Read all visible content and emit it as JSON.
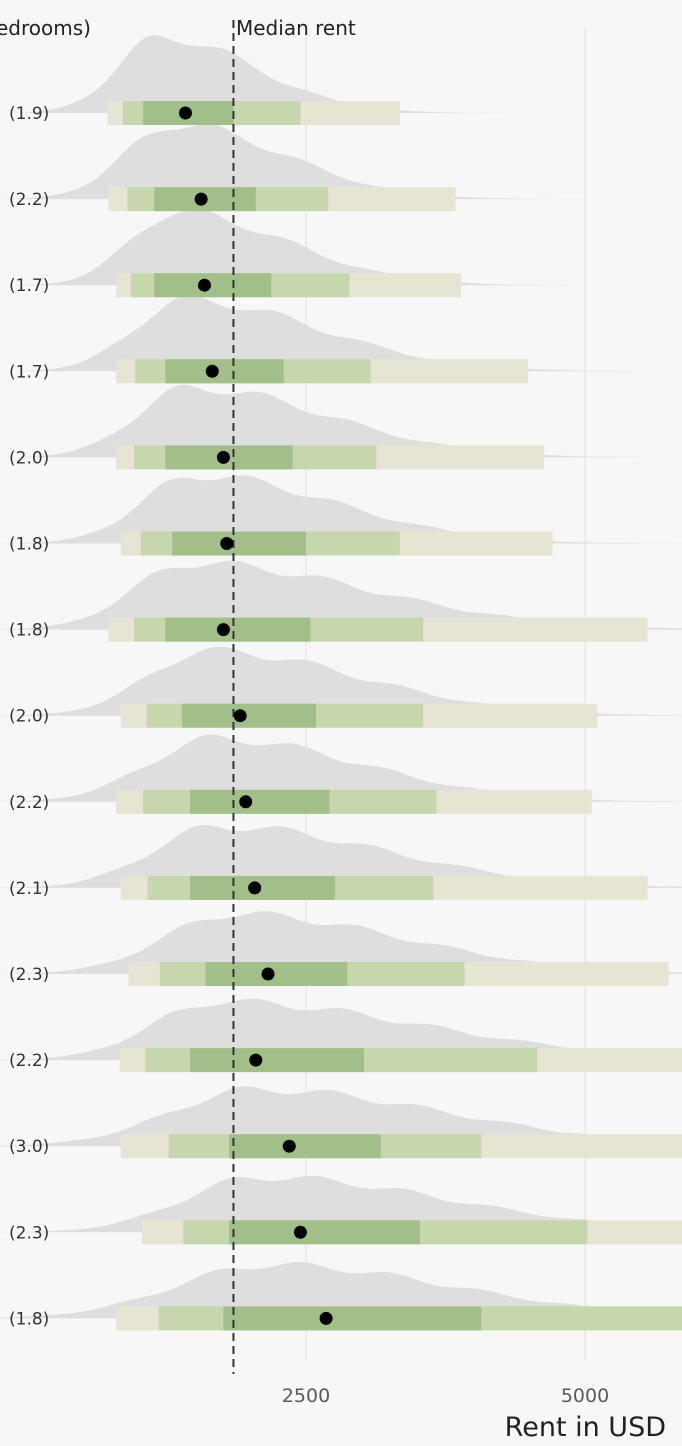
{
  "chart_data": {
    "type": "interval-density",
    "header_text": "edrooms)",
    "median_label": "Median rent",
    "median_value": 1850,
    "xlabel": "Rent in USD",
    "x_ticks": [
      2500,
      5000
    ],
    "xlim": [
      -700,
      6400
    ],
    "rows": [
      {
        "label": "(1.9)",
        "mean": 1420,
        "q50": [
          1040,
          1850
        ],
        "q80": [
          860,
          2450
        ],
        "q95": [
          720,
          3340
        ]
      },
      {
        "label": "(2.2)",
        "mean": 1560,
        "q50": [
          1140,
          2050
        ],
        "q80": [
          900,
          2700
        ],
        "q95": [
          730,
          3840
        ]
      },
      {
        "label": "(1.7)",
        "mean": 1590,
        "q50": [
          1140,
          2190
        ],
        "q80": [
          930,
          2890
        ],
        "q95": [
          800,
          3890
        ]
      },
      {
        "label": "(1.7)",
        "mean": 1660,
        "q50": [
          1240,
          2300
        ],
        "q80": [
          970,
          3080
        ],
        "q95": [
          800,
          4490
        ]
      },
      {
        "label": "(2.0)",
        "mean": 1760,
        "q50": [
          1240,
          2380
        ],
        "q80": [
          960,
          3130
        ],
        "q95": [
          800,
          4630
        ]
      },
      {
        "label": "(1.8)",
        "mean": 1790,
        "q50": [
          1300,
          2500
        ],
        "q80": [
          1020,
          3340
        ],
        "q95": [
          840,
          4710
        ]
      },
      {
        "label": "(1.8)",
        "mean": 1760,
        "q50": [
          1240,
          2540
        ],
        "q80": [
          960,
          3550
        ],
        "q95": [
          730,
          5560
        ]
      },
      {
        "label": "(2.0)",
        "mean": 1910,
        "q50": [
          1390,
          2590
        ],
        "q80": [
          1070,
          3550
        ],
        "q95": [
          840,
          5110
        ]
      },
      {
        "label": "(2.2)",
        "mean": 1960,
        "q50": [
          1460,
          2710
        ],
        "q80": [
          1040,
          3670
        ],
        "q95": [
          800,
          5060
        ]
      },
      {
        "label": "(2.1)",
        "mean": 2040,
        "q50": [
          1460,
          2760
        ],
        "q80": [
          1080,
          3640
        ],
        "q95": [
          840,
          5560
        ]
      },
      {
        "label": "(2.3)",
        "mean": 2160,
        "q50": [
          1600,
          2870
        ],
        "q80": [
          1190,
          3920
        ],
        "q95": [
          910,
          5750
        ]
      },
      {
        "label": "(2.2)",
        "mean": 2050,
        "q50": [
          1460,
          3020
        ],
        "q80": [
          1060,
          4570
        ],
        "q95": [
          830,
          6400
        ]
      },
      {
        "label": "(3.0)",
        "mean": 2350,
        "q50": [
          1810,
          3170
        ],
        "q80": [
          1270,
          4070
        ],
        "q95": [
          840,
          6400
        ]
      },
      {
        "label": "(2.3)",
        "mean": 2450,
        "q50": [
          1810,
          3520
        ],
        "q80": [
          1400,
          5020
        ],
        "q95": [
          1030,
          6400
        ]
      },
      {
        "label": "(1.8)",
        "mean": 2680,
        "q50": [
          1760,
          4070
        ],
        "q80": [
          1180,
          5870
        ],
        "q95": [
          800,
          6400
        ]
      }
    ],
    "colors": {
      "background": "#f7f7f7",
      "density": "#dedede",
      "interval_50": "#a2bf8a",
      "interval_80": "#c6d7ad",
      "interval_95": "#e6e4d2",
      "point": "#000000",
      "median_line": "#333333",
      "grid": "#e2e2e2"
    },
    "grid": "vertical"
  }
}
